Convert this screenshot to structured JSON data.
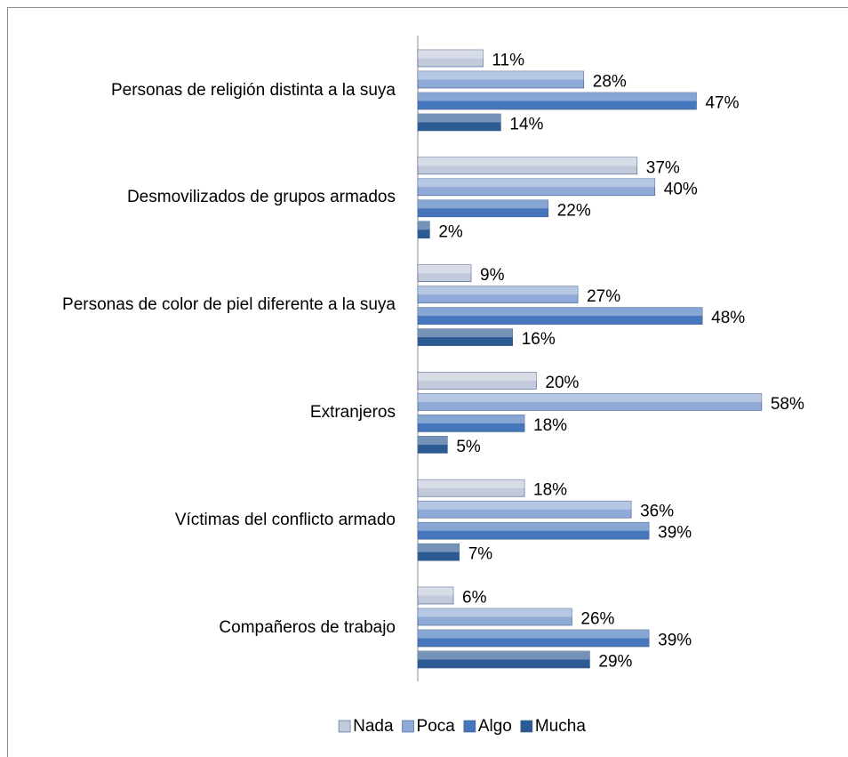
{
  "chart_data": {
    "type": "bar",
    "orientation": "horizontal",
    "categories": [
      "Personas de religión distinta a la suya",
      "Desmovilizados de grupos armados",
      "Personas de color de piel diferente a la suya",
      "Extranjeros ",
      "Víctimas del conflicto armado",
      "Compañeros de trabajo"
    ],
    "series": [
      {
        "name": "Nada",
        "color": "#c3cadb",
        "values": [
          11,
          37,
          9,
          20,
          18,
          6
        ],
        "value_labels": [
          "11%",
          "37%",
          "9%",
          "20%",
          "18%",
          "6%"
        ]
      },
      {
        "name": "Poca",
        "color": "#8faad6",
        "values": [
          28,
          40,
          27,
          58,
          36,
          26
        ],
        "value_labels": [
          "28%",
          "40%",
          "27%",
          "58%",
          "36%",
          "26%"
        ]
      },
      {
        "name": "Algo",
        "color": "#4677bd",
        "values": [
          47,
          22,
          48,
          18,
          39,
          39
        ],
        "value_labels": [
          "47%",
          "22%",
          "48%",
          "18%",
          "39%",
          "39%"
        ]
      },
      {
        "name": "Mucha",
        "color": "#2c5a93",
        "values": [
          14,
          2,
          16,
          5,
          7,
          29
        ],
        "value_labels": [
          "14%",
          "2%",
          "16%",
          "5%",
          "7%",
          "29%"
        ]
      }
    ],
    "legend": "bottom"
  }
}
